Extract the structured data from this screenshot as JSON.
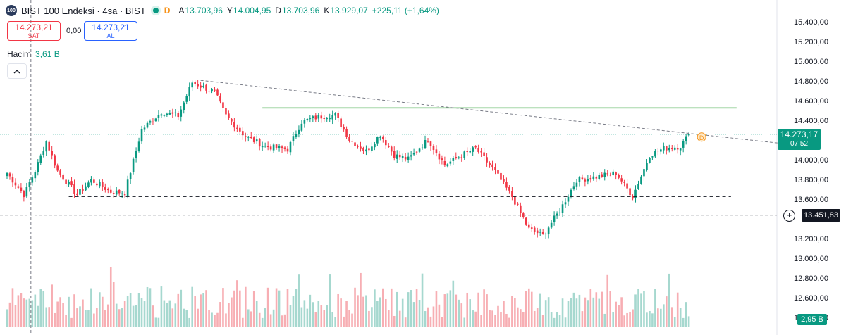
{
  "header": {
    "logo": "100",
    "title": "BIST 100 Endeksi · 4sa · BIST",
    "badge": "D",
    "ohlc": [
      {
        "k": "A",
        "v": "13.703,96"
      },
      {
        "k": "Y",
        "v": "14.004,95"
      },
      {
        "k": "D",
        "v": "13.703,96"
      },
      {
        "k": "K",
        "v": "13.929,07"
      }
    ],
    "change": "+225,11 (+1,64%)"
  },
  "trade": {
    "sell_price": "14.273,21",
    "sell_label": "SAT",
    "spread": "0,00",
    "buy_price": "14.273,21",
    "buy_label": "AL"
  },
  "volume_label": "Hacim",
  "volume_value": "3,61 B",
  "axis": {
    "ticks": [
      "15.400,00",
      "15.200,00",
      "15.000,00",
      "14.800,00",
      "14.600,00",
      "14.400,00",
      "14.000,00",
      "13.800,00",
      "13.600,00",
      "13.200,00",
      "13.000,00",
      "12.800,00",
      "12.600,00",
      "12.400,00"
    ],
    "last_price": "14.273,17",
    "countdown": "07:52",
    "crosshair_price": "13.451,83",
    "volume_tag": "2,95 B"
  },
  "chart_data": {
    "type": "candlestick",
    "y_range": [
      12400,
      15500
    ],
    "colors": {
      "up": "#089981",
      "down": "#f23645",
      "vol_up": "#a6d8cf",
      "vol_down": "#f7aeb3",
      "support": "#4caf50"
    },
    "anchors": [
      [
        0,
        13880
      ],
      [
        6,
        13660
      ],
      [
        10,
        13900
      ],
      [
        14,
        14200
      ],
      [
        18,
        13900
      ],
      [
        25,
        13660
      ],
      [
        30,
        13810
      ],
      [
        37,
        13690
      ],
      [
        42,
        13680
      ],
      [
        48,
        14320
      ],
      [
        55,
        14500
      ],
      [
        61,
        14460
      ],
      [
        66,
        14800
      ],
      [
        74,
        14700
      ],
      [
        78,
        14460
      ],
      [
        85,
        14250
      ],
      [
        92,
        14150
      ],
      [
        100,
        14120
      ],
      [
        105,
        14400
      ],
      [
        111,
        14450
      ],
      [
        117,
        14470
      ],
      [
        122,
        14220
      ],
      [
        128,
        14100
      ],
      [
        133,
        14270
      ],
      [
        138,
        14060
      ],
      [
        143,
        14020
      ],
      [
        150,
        14220
      ],
      [
        156,
        13960
      ],
      [
        162,
        14060
      ],
      [
        167,
        14130
      ],
      [
        174,
        13890
      ],
      [
        180,
        13640
      ],
      [
        186,
        13310
      ],
      [
        191,
        13250
      ],
      [
        197,
        13500
      ],
      [
        203,
        13810
      ],
      [
        210,
        13840
      ],
      [
        217,
        13880
      ],
      [
        223,
        13640
      ],
      [
        229,
        14060
      ],
      [
        234,
        14130
      ],
      [
        240,
        14150
      ],
      [
        243,
        14273
      ]
    ],
    "last_close": 14273.17,
    "trendline": {
      "start_index": 69,
      "start_price": 14820,
      "end_index": 276,
      "end_price": 14180
    },
    "resistance": {
      "price": 14540,
      "from_index": 91,
      "to_index": 260
    },
    "support": {
      "price": 13640,
      "from_index": 22,
      "to_index": 258
    },
    "crosshair": {
      "price": 13451.83,
      "index": 9
    }
  }
}
